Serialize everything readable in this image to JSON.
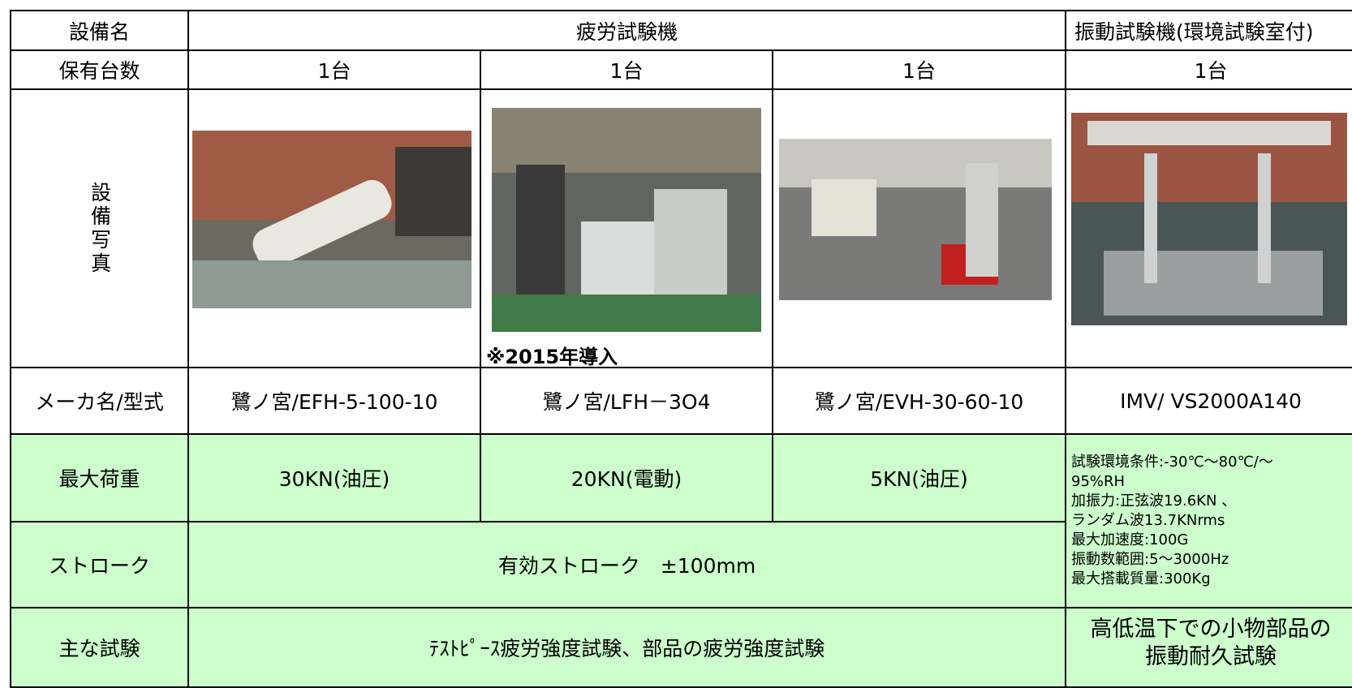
{
  "header": {
    "label": "設備名",
    "fatigue": "疲労試験機",
    "vibration": "振動試験機(環境試験室付)"
  },
  "count": {
    "label": "保有台数",
    "cells": [
      "1台",
      "1台",
      "1台",
      "1台"
    ]
  },
  "photo": {
    "label": "設備写真",
    "note": "※2015年導入"
  },
  "maker": {
    "label": "メーカ名/型式",
    "cells": [
      "鷺ノ宮/EFH-5-100-10",
      "鷺ノ宮/LFH－3O4",
      "鷺ノ宮/EVH-30-60-10",
      "IMV/ VS2000A140"
    ]
  },
  "max_load": {
    "label": "最大荷重",
    "cells": [
      "30KN(油圧)",
      "20KN(電動)",
      "5KN(油圧)"
    ]
  },
  "vibration_spec": [
    "試験環境条件:-30℃～80℃/～",
    "95%RH",
    "加振力:正弦波19.6KN 、",
    "ランダム波13.7KNrms",
    "最大加速度:100G",
    "振動数範囲:5～3000Hz",
    "最大搭載質量:300Kg"
  ],
  "stroke": {
    "label": "ストローク",
    "value": "有効ストローク　±100mm"
  },
  "main_tests": {
    "label": "主な試験",
    "fatigue": "ﾃｽﾄﾋﾟｰｽ疲労強度試験、部品の疲労強度試験",
    "vibration": [
      "高低温下での小物部品の",
      "振動耐久試験"
    ]
  }
}
